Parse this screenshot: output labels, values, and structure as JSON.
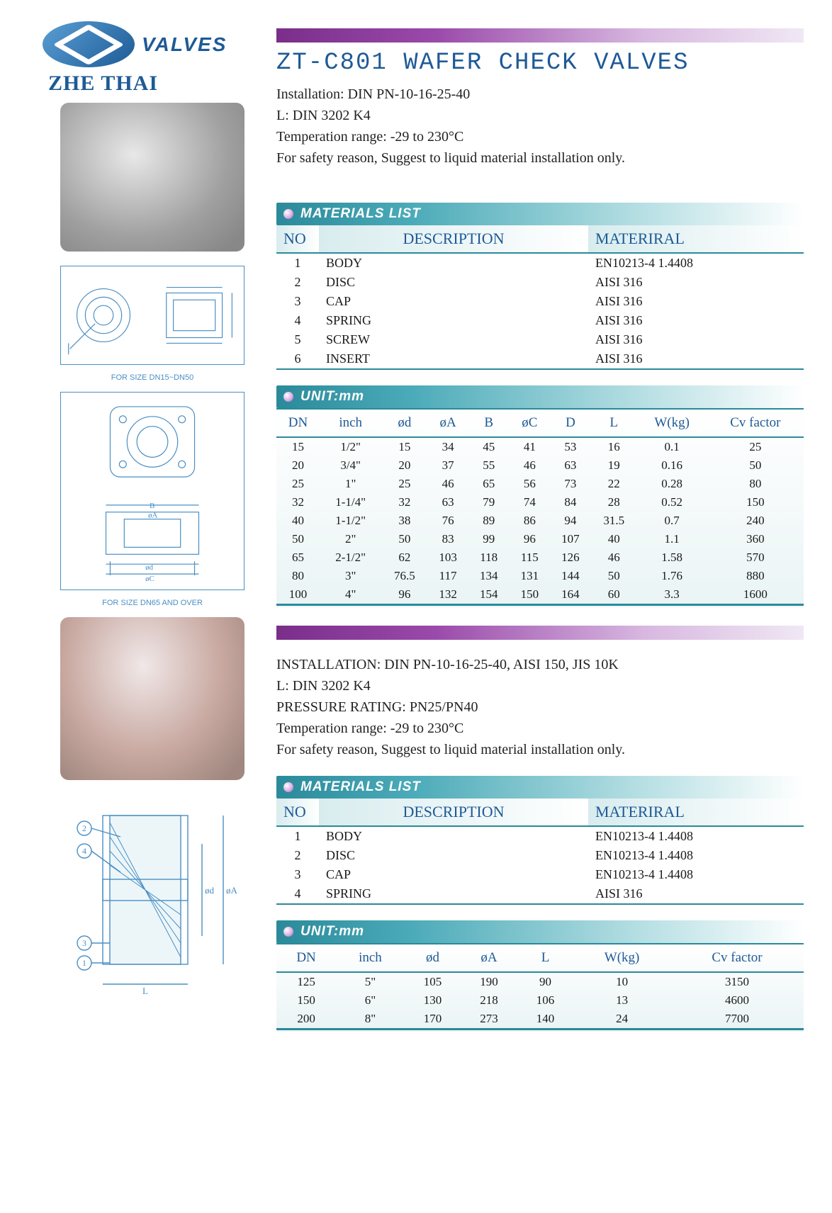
{
  "logo": {
    "brand_text": "VALVES",
    "company": "ZHE THAI"
  },
  "header": {
    "title": "ZT-C801  WAFER  CHECK  VALVES",
    "lines": [
      "Installation:  DIN PN-10-16-25-40",
      "L:  DIN 3202 K4",
      "Temperation range:  -29 to 230°C",
      "For safety reason, Suggest to liquid material installation only."
    ]
  },
  "diagram_captions": {
    "d1": "FOR SIZE DN15~DN50",
    "d2": "FOR SIZE DN65 AND OVER"
  },
  "materials1": {
    "header": "MATERIALS LIST",
    "columns": [
      "NO",
      "DESCRIPTION",
      "MATERIRAL"
    ],
    "rows": [
      [
        "1",
        "BODY",
        "EN10213-4 1.4408"
      ],
      [
        "2",
        "DISC",
        "AISI 316"
      ],
      [
        "3",
        "CAP",
        "AISI 316"
      ],
      [
        "4",
        "SPRING",
        "AISI 316"
      ],
      [
        "5",
        "SCREW",
        "AISI 316"
      ],
      [
        "6",
        "INSERT",
        "AISI 316"
      ]
    ]
  },
  "unit1": {
    "header": "UNIT:mm",
    "columns": [
      "DN",
      "inch",
      "ød",
      "øA",
      "B",
      "øC",
      "D",
      "L",
      "W(kg)",
      "Cv factor"
    ],
    "col_widths": [
      "50",
      "60",
      "50",
      "50",
      "50",
      "50",
      "50",
      "50",
      "70",
      "90"
    ],
    "rows": [
      [
        "15",
        "1/2\"",
        "15",
        "34",
        "45",
        "41",
        "53",
        "16",
        "0.1",
        "25"
      ],
      [
        "20",
        "3/4\"",
        "20",
        "37",
        "55",
        "46",
        "63",
        "19",
        "0.16",
        "50"
      ],
      [
        "25",
        "1\"",
        "25",
        "46",
        "65",
        "56",
        "73",
        "22",
        "0.28",
        "80"
      ],
      [
        "32",
        "1-1/4\"",
        "32",
        "63",
        "79",
        "74",
        "84",
        "28",
        "0.52",
        "150"
      ],
      [
        "40",
        "1-1/2\"",
        "38",
        "76",
        "89",
        "86",
        "94",
        "31.5",
        "0.7",
        "240"
      ],
      [
        "50",
        "2\"",
        "50",
        "83",
        "99",
        "96",
        "107",
        "40",
        "1.1",
        "360"
      ],
      [
        "65",
        "2-1/2\"",
        "62",
        "103",
        "118",
        "115",
        "126",
        "46",
        "1.58",
        "570"
      ],
      [
        "80",
        "3\"",
        "76.5",
        "117",
        "134",
        "131",
        "144",
        "50",
        "1.76",
        "880"
      ],
      [
        "100",
        "4\"",
        "96",
        "132",
        "154",
        "150",
        "164",
        "60",
        "3.3",
        "1600"
      ]
    ]
  },
  "header2": {
    "lines": [
      "INSTALLATION:  DIN PN-10-16-25-40,  AISI 150, JIS 10K",
      "L:  DIN 3202 K4",
      "PRESSURE RATING:  PN25/PN40",
      "Temperation range:  -29 to 230°C",
      "For safety reason, Suggest to liquid material installation only."
    ]
  },
  "materials2": {
    "header": "MATERIALS LIST",
    "columns": [
      "NO",
      "DESCRIPTION",
      "MATERIRAL"
    ],
    "rows": [
      [
        "1",
        "BODY",
        "EN10213-4 1.4408"
      ],
      [
        "2",
        "DISC",
        "EN10213-4 1.4408"
      ],
      [
        "3",
        "CAP",
        "EN10213-4  1.4408"
      ],
      [
        "4",
        "SPRING",
        "AISI 316"
      ]
    ]
  },
  "unit2": {
    "header": "UNIT:mm",
    "columns": [
      "DN",
      "inch",
      "ød",
      "øA",
      "L",
      "W(kg)",
      "Cv factor"
    ],
    "rows": [
      [
        "125",
        "5\"",
        "105",
        "190",
        "90",
        "10",
        "3150"
      ],
      [
        "150",
        "6\"",
        "130",
        "218",
        "106",
        "13",
        "4600"
      ],
      [
        "200",
        "8\"",
        "170",
        "273",
        "140",
        "24",
        "7700"
      ]
    ]
  },
  "colors": {
    "brand_blue": "#1e5a96",
    "teal": "#2a8a9a",
    "purple": "#7a2e8a"
  }
}
